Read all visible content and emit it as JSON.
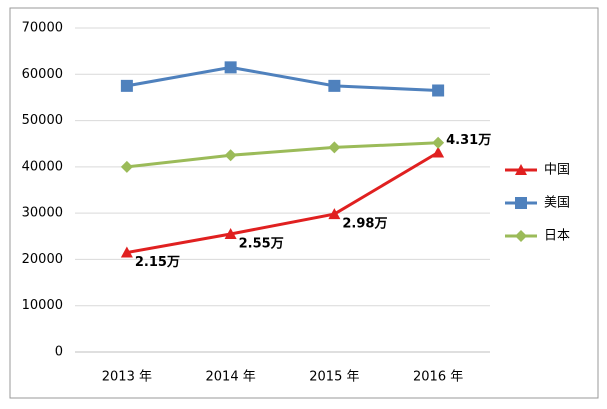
{
  "chart_data": {
    "type": "line",
    "categories": [
      "2013 年",
      "2014 年",
      "2015 年",
      "2016 年"
    ],
    "series": [
      {
        "name": "中国",
        "color": "#e02020",
        "marker": "triangle",
        "values": [
          21500,
          25500,
          29800,
          43100
        ],
        "value_labels": [
          "2.15万",
          "2.55万",
          "2.98万",
          "4.31万"
        ]
      },
      {
        "name": "美国",
        "color": "#4f81bd",
        "marker": "square",
        "values": [
          57500,
          61500,
          57500,
          56500
        ]
      },
      {
        "name": "日本",
        "color": "#9bbb59",
        "marker": "diamond",
        "values": [
          40000,
          42500,
          44200,
          45200
        ]
      }
    ],
    "ylim": [
      0,
      70000
    ],
    "yticks": [
      0,
      10000,
      20000,
      30000,
      40000,
      50000,
      60000,
      70000
    ],
    "grid": true,
    "legend": "right"
  }
}
